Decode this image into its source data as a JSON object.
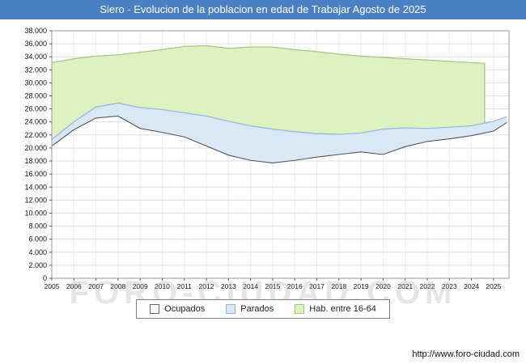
{
  "header": {
    "title": "Siero - Evolucion de la poblacion en edad de Trabajar Agosto de 2025",
    "bg_color": "#4a80c4",
    "text_color": "#ffffff"
  },
  "watermark": "FORO-CIUDAD.COM",
  "footer": {
    "url": "http://www.foro-ciudad.com"
  },
  "legend": {
    "items": [
      {
        "label": "Ocupados",
        "fill": "#ffffff",
        "border": "#666666"
      },
      {
        "label": "Parados",
        "fill": "#d9e8f7",
        "border": "#92b4dc"
      },
      {
        "label": "Hab. entre 16-64",
        "fill": "#ddf1c1",
        "border": "#9fc87f"
      }
    ]
  },
  "chart_data": {
    "type": "area",
    "title": "Siero - Evolucion de la poblacion en edad de Trabajar Agosto de 2025",
    "xlabel": "",
    "ylabel": "",
    "ylim": [
      0,
      38000
    ],
    "ytick_step": 2000,
    "xticks": [
      2005,
      2006,
      2007,
      2008,
      2009,
      2010,
      2011,
      2012,
      2013,
      2014,
      2015,
      2016,
      2017,
      2018,
      2019,
      2020,
      2021,
      2022,
      2023,
      2024,
      2025
    ],
    "grid": true,
    "legend_position": "bottom",
    "colors": {
      "grid_h": "#dcdcdc",
      "grid_v": "#ececec",
      "plot_border": "#9a9a9a",
      "hab_fill": "#ddf1c1",
      "hab_stroke": "#9fc87f",
      "parados_fill": "#d9e8f7",
      "parados_stroke": "#92b4dc",
      "ocupados_stroke": "#555555",
      "tick_text": "#111111"
    },
    "series": [
      {
        "name": "Hab. entre 16-64",
        "note": "upper boundary of green band; data ends mid-2024 then drops",
        "x": [
          2005,
          2006,
          2007,
          2008,
          2009,
          2010,
          2011,
          2012,
          2013,
          2014,
          2015,
          2016,
          2017,
          2018,
          2019,
          2020,
          2021,
          2022,
          2023,
          2024,
          2024.6
        ],
        "values": [
          33100,
          33700,
          34100,
          34300,
          34700,
          35100,
          35600,
          35700,
          35300,
          35500,
          35500,
          35100,
          34800,
          34400,
          34100,
          33900,
          33700,
          33500,
          33300,
          33100,
          33000
        ]
      },
      {
        "name": "Parados (tope: Ocupados+Parados)",
        "x": [
          2005,
          2006,
          2007,
          2008,
          2009,
          2010,
          2011,
          2012,
          2013,
          2014,
          2015,
          2016,
          2017,
          2018,
          2019,
          2020,
          2021,
          2022,
          2023,
          2024,
          2025,
          2025.6
        ],
        "values": [
          21300,
          24000,
          26300,
          26900,
          26200,
          25900,
          25400,
          24900,
          24100,
          23400,
          22900,
          22500,
          22200,
          22100,
          22300,
          22900,
          23100,
          23000,
          23200,
          23400,
          24100,
          24800
        ]
      },
      {
        "name": "Ocupados",
        "x": [
          2005,
          2006,
          2007,
          2008,
          2009,
          2010,
          2011,
          2012,
          2013,
          2014,
          2015,
          2016,
          2017,
          2018,
          2019,
          2020,
          2021,
          2022,
          2023,
          2024,
          2025,
          2025.6
        ],
        "values": [
          20300,
          22800,
          24600,
          24900,
          23000,
          22400,
          21700,
          20300,
          18900,
          18100,
          17700,
          18100,
          18600,
          19000,
          19400,
          19000,
          20200,
          21000,
          21400,
          21900,
          22600,
          23900
        ]
      }
    ]
  }
}
